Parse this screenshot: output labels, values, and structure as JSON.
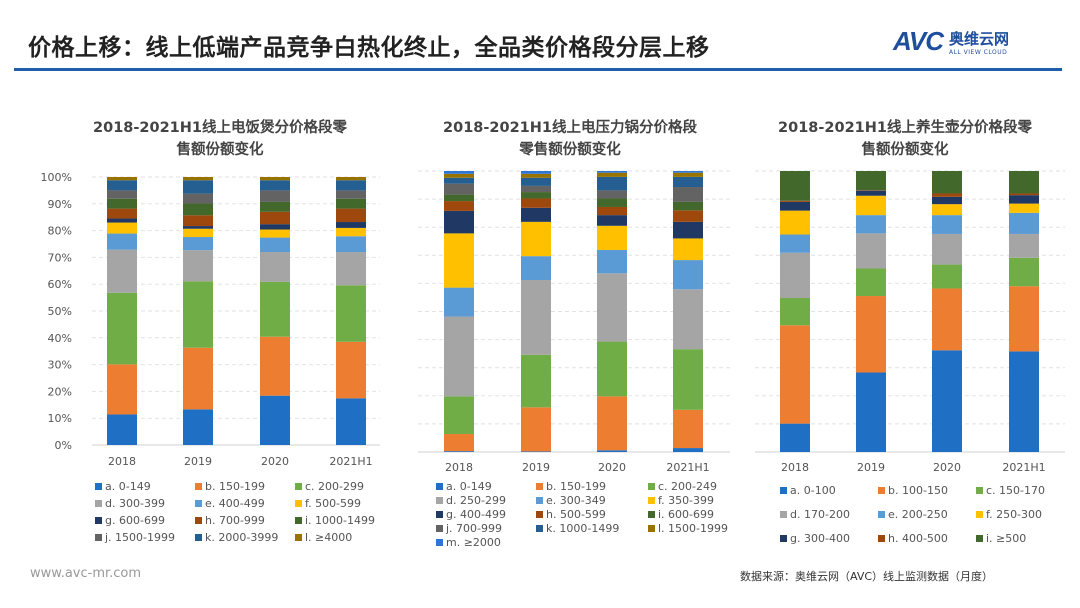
{
  "header": {
    "title": "价格上移：线上低端产品竞争白热化终止，全品类价格段分层上移",
    "logo_text": "AVC",
    "logo_cn": "奥维云网",
    "logo_en": "ALL VIEW CLOUD",
    "accent_color": "#1f5ea8"
  },
  "footer": {
    "url": "www.avc-mr.com",
    "source": "数据来源：奥维云网（AVC）线上监测数据（月度）"
  },
  "chart_data": [
    {
      "type": "bar",
      "stacked": true,
      "title_line1": "2018-2021H1线上电饭煲分价格段零",
      "title_line2": "售额份额变化",
      "categories": [
        "2018",
        "2019",
        "2020",
        "2021H1"
      ],
      "ylim": [
        0,
        100
      ],
      "yticks": [
        "0%",
        "10%",
        "20%",
        "30%",
        "40%",
        "50%",
        "60%",
        "70%",
        "80%",
        "90%",
        "100%"
      ],
      "grid": true,
      "legend_position": "bottom",
      "series": [
        {
          "name": "a. 0-149",
          "color": "#1f6fc5",
          "values": [
            11.4,
            13.3,
            18.4,
            17.4
          ]
        },
        {
          "name": "b. 150-199",
          "color": "#ed7d31",
          "values": [
            18.7,
            23.0,
            22.0,
            21.1
          ]
        },
        {
          "name": "c. 200-299",
          "color": "#70ad47",
          "values": [
            26.7,
            24.8,
            20.5,
            21.1
          ]
        },
        {
          "name": "d. 300-399",
          "color": "#a5a5a5",
          "values": [
            16.1,
            11.6,
            11.1,
            12.4
          ]
        },
        {
          "name": "e. 400-499",
          "color": "#5b9bd5",
          "values": [
            6.0,
            4.9,
            5.4,
            5.9
          ]
        },
        {
          "name": "f. 500-599",
          "color": "#ffc000",
          "values": [
            4.1,
            3.1,
            3.0,
            3.1
          ]
        },
        {
          "name": "g. 600-699",
          "color": "#1f3864",
          "values": [
            1.5,
            1.0,
            2.0,
            2.2
          ]
        },
        {
          "name": "h. 700-999",
          "color": "#9e480e",
          "values": [
            3.7,
            4.0,
            4.6,
            5.0
          ]
        },
        {
          "name": "i. 1000-1499",
          "color": "#43682b",
          "values": [
            3.7,
            4.4,
            3.7,
            3.7
          ]
        },
        {
          "name": "j. 1500-1999",
          "color": "#636363",
          "values": [
            3.1,
            3.7,
            4.3,
            3.1
          ]
        },
        {
          "name": "k. 2000-3999",
          "color": "#255e91",
          "values": [
            3.8,
            5.0,
            3.8,
            3.8
          ]
        },
        {
          "name": "l. ≥4000",
          "color": "#997300",
          "values": [
            1.2,
            1.2,
            1.2,
            1.2
          ]
        }
      ]
    },
    {
      "type": "bar",
      "stacked": true,
      "title_line1": "2018-2021H1线上电压力锅分价格段",
      "title_line2": "零售额份额变化",
      "categories": [
        "2018",
        "2019",
        "2020",
        "2021H1"
      ],
      "ylim": [
        0,
        100
      ],
      "grid": true,
      "legend_position": "bottom",
      "series": [
        {
          "name": "a. 0-149",
          "color": "#1f6fc5",
          "values": [
            0.3,
            0.2,
            0.6,
            1.4
          ]
        },
        {
          "name": "b. 150-199",
          "color": "#ed7d31",
          "values": [
            6.1,
            15.7,
            19.2,
            13.6
          ]
        },
        {
          "name": "c. 200-249",
          "color": "#70ad47",
          "values": [
            13.4,
            18.7,
            19.5,
            21.6
          ]
        },
        {
          "name": "d. 250-299",
          "color": "#a5a5a5",
          "values": [
            28.4,
            26.6,
            24.3,
            21.3
          ]
        },
        {
          "name": "e. 300-349",
          "color": "#5b9bd5",
          "values": [
            10.3,
            8.5,
            8.3,
            10.4
          ]
        },
        {
          "name": "f. 350-399",
          "color": "#ffc000",
          "values": [
            19.3,
            12.2,
            8.6,
            7.7
          ]
        },
        {
          "name": "g. 400-499",
          "color": "#1f3864",
          "values": [
            8.0,
            5.0,
            3.8,
            5.9
          ]
        },
        {
          "name": "h. 500-599",
          "color": "#9e480e",
          "values": [
            3.5,
            3.3,
            2.9,
            4.1
          ]
        },
        {
          "name": "i. 600-699",
          "color": "#43682b",
          "values": [
            2.3,
            2.3,
            3.0,
            3.0
          ]
        },
        {
          "name": "j. 700-999",
          "color": "#636363",
          "values": [
            3.9,
            2.2,
            2.9,
            5.3
          ]
        },
        {
          "name": "k. 1000-1499",
          "color": "#255e91",
          "values": [
            2.1,
            2.9,
            4.8,
            3.6
          ]
        },
        {
          "name": "l. 1500-1999",
          "color": "#997300",
          "values": [
            1.4,
            1.4,
            1.5,
            1.5
          ]
        },
        {
          "name": "m. ≥2000",
          "color": "#2e75d6",
          "values": [
            1.0,
            1.0,
            0.6,
            0.6
          ]
        }
      ]
    },
    {
      "type": "bar",
      "stacked": true,
      "title_line1": "2018-2021H1线上养生壶分价格段零",
      "title_line2": "售额份额变化",
      "categories": [
        "2018",
        "2019",
        "2020",
        "2021H1"
      ],
      "ylim": [
        0,
        100
      ],
      "grid": true,
      "legend_position": "bottom",
      "series": [
        {
          "name": "a. 0-100",
          "color": "#1f6fc5",
          "values": [
            10.1,
            28.3,
            36.2,
            35.8
          ]
        },
        {
          "name": "b. 100-150",
          "color": "#ed7d31",
          "values": [
            35.0,
            27.2,
            22.0,
            23.2
          ]
        },
        {
          "name": "c. 150-170",
          "color": "#70ad47",
          "values": [
            9.7,
            9.8,
            8.5,
            10.1
          ]
        },
        {
          "name": "d. 170-200",
          "color": "#a5a5a5",
          "values": [
            16.1,
            12.5,
            10.9,
            8.5
          ]
        },
        {
          "name": "e. 200-250",
          "color": "#5b9bd5",
          "values": [
            6.5,
            6.5,
            6.7,
            7.5
          ]
        },
        {
          "name": "f. 250-300",
          "color": "#ffc000",
          "values": [
            8.5,
            6.9,
            3.9,
            3.3
          ]
        },
        {
          "name": "g. 300-400",
          "color": "#1f3864",
          "values": [
            3.1,
            1.8,
            2.6,
            3.0
          ]
        },
        {
          "name": "h. 400-500",
          "color": "#9e480e",
          "values": [
            0.4,
            0.2,
            1.2,
            0.6
          ]
        },
        {
          "name": "i. ≥500",
          "color": "#43682b",
          "values": [
            10.6,
            6.8,
            8.0,
            8.0
          ]
        }
      ]
    }
  ]
}
